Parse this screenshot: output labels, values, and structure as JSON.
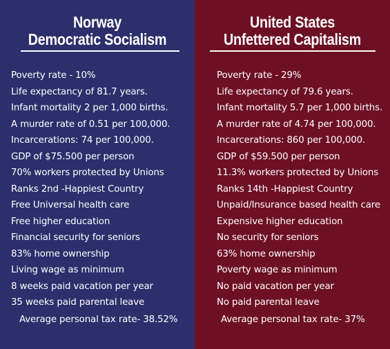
{
  "norway": {
    "title_line1": "Norway",
    "title_line2": "Democratic Socialism",
    "stats": [
      "Poverty rate - 10%",
      "Life expectancy of 81.7 years.",
      "Infant mortality 2 per 1,000 births.",
      "A murder rate of 0.51 per 100,000.",
      "Incarcerations: 74 per 100,000.",
      "GDP of $75.500 per person",
      "70% workers protected by Unions",
      "Ranks 2nd -Happiest Country",
      "Free Universal health care",
      "Free higher education",
      "Financial security for seniors",
      "83% home ownership",
      "Living wage as minimum",
      "8 weeks paid vacation per year",
      "35 weeks paid parental leave"
    ],
    "tax": "Average personal tax rate- 38.52%"
  },
  "us": {
    "title_line1": "United States",
    "title_line2": "Unfettered Capitalism",
    "stats": [
      "Poverty rate - 29%",
      "Life expectancy of 79.6 years.",
      "Infant mortality 5.7 per 1,000 births.",
      "A murder rate of 4.74 per 100,000.",
      "Incarcerations: 860 per 100,000.",
      "GDP of $59.500 per person",
      "11.3% workers protected by Unions",
      "Ranks 14th -Happiest Country",
      "Unpaid/Insurance based health care",
      "Expensive higher education",
      "No security for seniors",
      "63% home ownership",
      "Poverty wage as minimum",
      "No paid vacation per year",
      "No paid parental leave"
    ],
    "tax": "Average personal tax rate- 37%"
  },
  "colors": {
    "norway_bg": "#2c2f6b",
    "us_bg": "#6d1025",
    "text": "#ffffff"
  }
}
